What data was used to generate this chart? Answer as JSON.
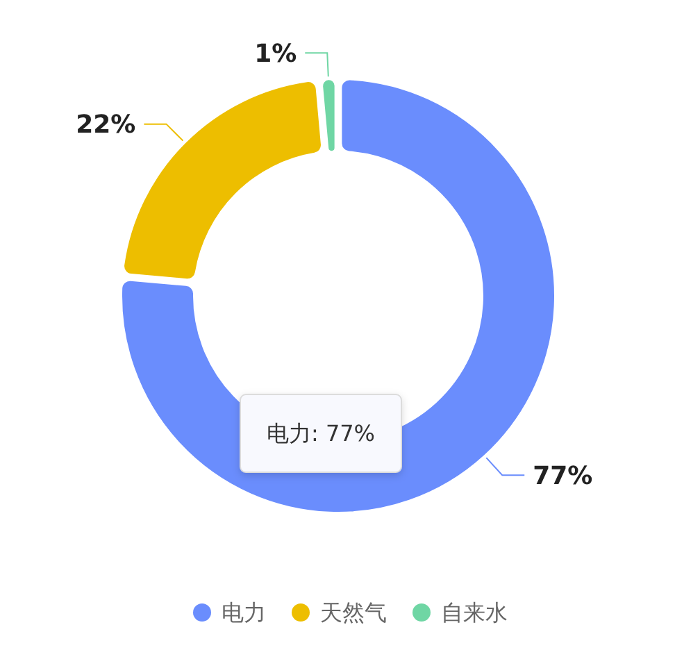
{
  "chart_data": {
    "type": "donut",
    "categories": [
      "电力",
      "天然气",
      "自来水"
    ],
    "values": [
      77,
      22,
      1
    ],
    "colors": [
      "#6a8dfd",
      "#edbe00",
      "#6fd6a4"
    ],
    "value_labels": [
      "77%",
      "22%",
      "1%"
    ],
    "legend": "bottom",
    "annotations": [
      "电力: 77%"
    ]
  }
}
